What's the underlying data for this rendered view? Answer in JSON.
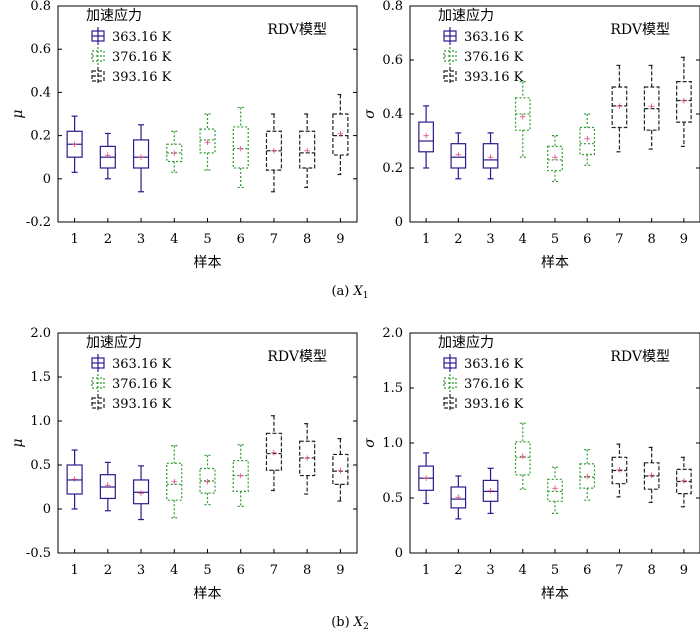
{
  "captions": {
    "a_prefix": "(a) ",
    "a_var": "X",
    "a_sub": "1",
    "b_prefix": "(b) ",
    "b_var": "X",
    "b_sub": "2"
  },
  "colors": {
    "s1": "#2b1a8e",
    "s2": "#2f9a2f",
    "s3": "#222222",
    "mean": "#e0407a"
  },
  "chart_data": [
    {
      "type": "box",
      "xlabel": "样本",
      "ylabel": "μ",
      "ylim": [
        -0.2,
        0.8
      ],
      "yticks": [
        -0.2,
        0,
        0.2,
        0.4,
        0.6,
        0.8
      ],
      "yticks_text": [
        "-0.2",
        "0",
        "0.2",
        "0.4",
        "0.6",
        "0.8"
      ],
      "categories": [
        "1",
        "2",
        "3",
        "4",
        "5",
        "6",
        "7",
        "8",
        "9"
      ],
      "legend_title": "加速应力",
      "model_label": "RDV模型",
      "series": [
        {
          "name": "363.16 K",
          "color": "#2b1a8e",
          "dash": "solid",
          "samples": [
            0,
            1,
            2
          ]
        },
        {
          "name": "376.16 K",
          "color": "#2f9a2f",
          "dash": "dotted",
          "samples": [
            3,
            4,
            5
          ]
        },
        {
          "name": "393.16 K",
          "color": "#222222",
          "dash": "dashed",
          "samples": [
            6,
            7,
            8
          ]
        }
      ],
      "boxes": [
        {
          "min": 0.03,
          "q1": 0.1,
          "median": 0.16,
          "q3": 0.22,
          "max": 0.29,
          "mean": 0.16
        },
        {
          "min": 0.0,
          "q1": 0.05,
          "median": 0.1,
          "q3": 0.15,
          "max": 0.21,
          "mean": 0.11
        },
        {
          "min": -0.06,
          "q1": 0.05,
          "median": 0.1,
          "q3": 0.18,
          "max": 0.25,
          "mean": 0.1
        },
        {
          "min": 0.03,
          "q1": 0.08,
          "median": 0.12,
          "q3": 0.16,
          "max": 0.22,
          "mean": 0.12
        },
        {
          "min": 0.04,
          "q1": 0.12,
          "median": 0.18,
          "q3": 0.23,
          "max": 0.3,
          "mean": 0.17
        },
        {
          "min": -0.04,
          "q1": 0.05,
          "median": 0.14,
          "q3": 0.24,
          "max": 0.33,
          "mean": 0.14
        },
        {
          "min": -0.06,
          "q1": 0.04,
          "median": 0.13,
          "q3": 0.22,
          "max": 0.3,
          "mean": 0.13
        },
        {
          "min": -0.04,
          "q1": 0.05,
          "median": 0.12,
          "q3": 0.22,
          "max": 0.3,
          "mean": 0.13
        },
        {
          "min": 0.02,
          "q1": 0.11,
          "median": 0.2,
          "q3": 0.3,
          "max": 0.39,
          "mean": 0.21
        }
      ]
    },
    {
      "type": "box",
      "xlabel": "样本",
      "ylabel": "σ",
      "ylim": [
        0,
        0.8
      ],
      "yticks": [
        0,
        0.2,
        0.4,
        0.6,
        0.8
      ],
      "yticks_text": [
        "0",
        "0.2",
        "0.4",
        "0.6",
        "0.8"
      ],
      "categories": [
        "1",
        "2",
        "3",
        "4",
        "5",
        "6",
        "7",
        "8",
        "9"
      ],
      "legend_title": "加速应力",
      "model_label": "RDV模型",
      "series": [
        {
          "name": "363.16 K",
          "color": "#2b1a8e",
          "dash": "solid",
          "samples": [
            0,
            1,
            2
          ]
        },
        {
          "name": "376.16 K",
          "color": "#2f9a2f",
          "dash": "dotted",
          "samples": [
            3,
            4,
            5
          ]
        },
        {
          "name": "393.16 K",
          "color": "#222222",
          "dash": "dashed",
          "samples": [
            6,
            7,
            8
          ]
        }
      ],
      "boxes": [
        {
          "min": 0.2,
          "q1": 0.26,
          "median": 0.3,
          "q3": 0.37,
          "max": 0.43,
          "mean": 0.32
        },
        {
          "min": 0.16,
          "q1": 0.2,
          "median": 0.24,
          "q3": 0.29,
          "max": 0.33,
          "mean": 0.25
        },
        {
          "min": 0.16,
          "q1": 0.2,
          "median": 0.23,
          "q3": 0.29,
          "max": 0.33,
          "mean": 0.24
        },
        {
          "min": 0.24,
          "q1": 0.34,
          "median": 0.4,
          "q3": 0.46,
          "max": 0.52,
          "mean": 0.39
        },
        {
          "min": 0.15,
          "q1": 0.19,
          "median": 0.23,
          "q3": 0.28,
          "max": 0.32,
          "mean": 0.24
        },
        {
          "min": 0.21,
          "q1": 0.25,
          "median": 0.29,
          "q3": 0.35,
          "max": 0.4,
          "mean": 0.31
        },
        {
          "min": 0.26,
          "q1": 0.35,
          "median": 0.43,
          "q3": 0.5,
          "max": 0.58,
          "mean": 0.43
        },
        {
          "min": 0.27,
          "q1": 0.34,
          "median": 0.42,
          "q3": 0.5,
          "max": 0.58,
          "mean": 0.43
        },
        {
          "min": 0.28,
          "q1": 0.37,
          "median": 0.45,
          "q3": 0.52,
          "max": 0.61,
          "mean": 0.45
        }
      ]
    },
    {
      "type": "box",
      "xlabel": "样本",
      "ylabel": "μ",
      "ylim": [
        -0.5,
        2.0
      ],
      "yticks": [
        -0.5,
        0,
        0.5,
        1.0,
        1.5,
        2.0
      ],
      "yticks_text": [
        "-0.5",
        "0",
        "0.5",
        "1.0",
        "1.5",
        "2.0"
      ],
      "categories": [
        "1",
        "2",
        "3",
        "4",
        "5",
        "6",
        "7",
        "8",
        "9"
      ],
      "legend_title": "加速应力",
      "model_label": "RDV模型",
      "series": [
        {
          "name": "363.16 K",
          "color": "#2b1a8e",
          "dash": "solid",
          "samples": [
            0,
            1,
            2
          ]
        },
        {
          "name": "376.16 K",
          "color": "#2f9a2f",
          "dash": "dotted",
          "samples": [
            3,
            4,
            5
          ]
        },
        {
          "name": "393.16 K",
          "color": "#222222",
          "dash": "dashed",
          "samples": [
            6,
            7,
            8
          ]
        }
      ],
      "boxes": [
        {
          "min": 0.0,
          "q1": 0.17,
          "median": 0.33,
          "q3": 0.5,
          "max": 0.67,
          "mean": 0.34
        },
        {
          "min": -0.02,
          "q1": 0.12,
          "median": 0.25,
          "q3": 0.39,
          "max": 0.53,
          "mean": 0.27
        },
        {
          "min": -0.12,
          "q1": 0.06,
          "median": 0.19,
          "q3": 0.33,
          "max": 0.49,
          "mean": 0.18
        },
        {
          "min": -0.1,
          "q1": 0.1,
          "median": 0.28,
          "q3": 0.52,
          "max": 0.72,
          "mean": 0.31
        },
        {
          "min": 0.05,
          "q1": 0.18,
          "median": 0.32,
          "q3": 0.46,
          "max": 0.61,
          "mean": 0.31
        },
        {
          "min": 0.03,
          "q1": 0.2,
          "median": 0.38,
          "q3": 0.55,
          "max": 0.73,
          "mean": 0.38
        },
        {
          "min": 0.21,
          "q1": 0.44,
          "median": 0.63,
          "q3": 0.86,
          "max": 1.06,
          "mean": 0.64
        },
        {
          "min": 0.17,
          "q1": 0.38,
          "median": 0.58,
          "q3": 0.77,
          "max": 0.97,
          "mean": 0.58
        },
        {
          "min": 0.09,
          "q1": 0.28,
          "median": 0.43,
          "q3": 0.62,
          "max": 0.8,
          "mean": 0.44
        }
      ]
    },
    {
      "type": "box",
      "xlabel": "样本",
      "ylabel": "σ",
      "ylim": [
        0,
        2.0
      ],
      "yticks": [
        0,
        0.5,
        1.0,
        1.5,
        2.0
      ],
      "yticks_text": [
        "0",
        "0.5",
        "1.0",
        "1.5",
        "2.0"
      ],
      "categories": [
        "1",
        "2",
        "3",
        "4",
        "5",
        "6",
        "7",
        "8",
        "9"
      ],
      "legend_title": "加速应力",
      "model_label": "RDV模型",
      "series": [
        {
          "name": "363.16 K",
          "color": "#2b1a8e",
          "dash": "solid",
          "samples": [
            0,
            1,
            2
          ]
        },
        {
          "name": "376.16 K",
          "color": "#2f9a2f",
          "dash": "dotted",
          "samples": [
            3,
            4,
            5
          ]
        },
        {
          "name": "393.16 K",
          "color": "#222222",
          "dash": "dashed",
          "samples": [
            6,
            7,
            8
          ]
        }
      ],
      "boxes": [
        {
          "min": 0.45,
          "q1": 0.57,
          "median": 0.68,
          "q3": 0.79,
          "max": 0.91,
          "mean": 0.68
        },
        {
          "min": 0.31,
          "q1": 0.41,
          "median": 0.49,
          "q3": 0.6,
          "max": 0.7,
          "mean": 0.51
        },
        {
          "min": 0.36,
          "q1": 0.47,
          "median": 0.56,
          "q3": 0.66,
          "max": 0.77,
          "mean": 0.57
        },
        {
          "min": 0.58,
          "q1": 0.71,
          "median": 0.87,
          "q3": 1.01,
          "max": 1.18,
          "mean": 0.88
        },
        {
          "min": 0.36,
          "q1": 0.47,
          "median": 0.56,
          "q3": 0.67,
          "max": 0.78,
          "mean": 0.59
        },
        {
          "min": 0.48,
          "q1": 0.59,
          "median": 0.69,
          "q3": 0.81,
          "max": 0.94,
          "mean": 0.7
        },
        {
          "min": 0.51,
          "q1": 0.63,
          "median": 0.75,
          "q3": 0.87,
          "max": 0.99,
          "mean": 0.76
        },
        {
          "min": 0.46,
          "q1": 0.58,
          "median": 0.7,
          "q3": 0.82,
          "max": 0.96,
          "mean": 0.71
        },
        {
          "min": 0.42,
          "q1": 0.54,
          "median": 0.65,
          "q3": 0.76,
          "max": 0.87,
          "mean": 0.66
        }
      ]
    }
  ]
}
